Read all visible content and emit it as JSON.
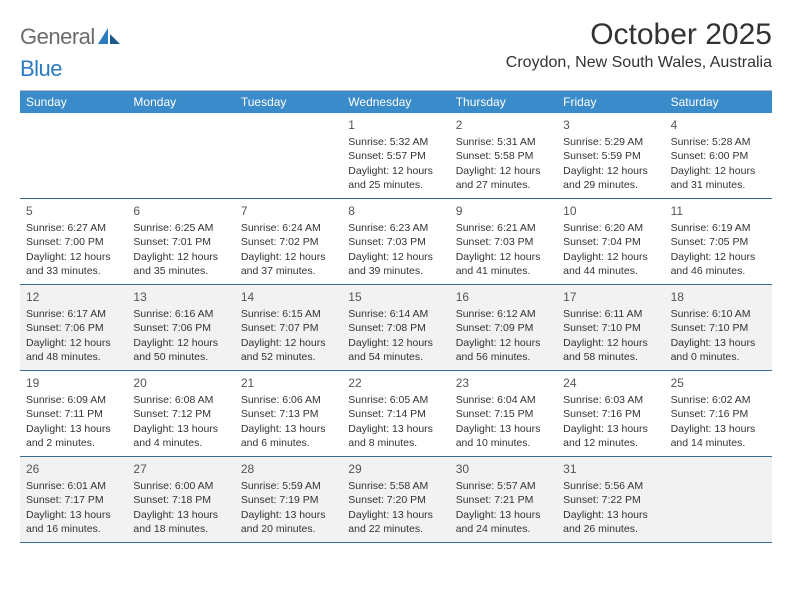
{
  "brand": {
    "left": "General",
    "right": "Blue"
  },
  "title": "October 2025",
  "location": "Croydon, New South Wales, Australia",
  "style": {
    "header_bg": "#3a8bc9",
    "header_fg": "#ffffff",
    "row_divider": "#3a6a8f",
    "alt_row_bg": "#f2f2f2",
    "text_color": "#333333",
    "title_fontsize": 30,
    "location_fontsize": 16,
    "dayhead_fontsize": 12,
    "cell_fontsize": 10.5
  },
  "day_names": [
    "Sunday",
    "Monday",
    "Tuesday",
    "Wednesday",
    "Thursday",
    "Friday",
    "Saturday"
  ],
  "leading_blanks": 3,
  "days": [
    {
      "n": "1",
      "sunrise": "Sunrise: 5:32 AM",
      "sunset": "Sunset: 5:57 PM",
      "day1": "Daylight: 12 hours",
      "day2": "and 25 minutes."
    },
    {
      "n": "2",
      "sunrise": "Sunrise: 5:31 AM",
      "sunset": "Sunset: 5:58 PM",
      "day1": "Daylight: 12 hours",
      "day2": "and 27 minutes."
    },
    {
      "n": "3",
      "sunrise": "Sunrise: 5:29 AM",
      "sunset": "Sunset: 5:59 PM",
      "day1": "Daylight: 12 hours",
      "day2": "and 29 minutes."
    },
    {
      "n": "4",
      "sunrise": "Sunrise: 5:28 AM",
      "sunset": "Sunset: 6:00 PM",
      "day1": "Daylight: 12 hours",
      "day2": "and 31 minutes."
    },
    {
      "n": "5",
      "sunrise": "Sunrise: 6:27 AM",
      "sunset": "Sunset: 7:00 PM",
      "day1": "Daylight: 12 hours",
      "day2": "and 33 minutes."
    },
    {
      "n": "6",
      "sunrise": "Sunrise: 6:25 AM",
      "sunset": "Sunset: 7:01 PM",
      "day1": "Daylight: 12 hours",
      "day2": "and 35 minutes."
    },
    {
      "n": "7",
      "sunrise": "Sunrise: 6:24 AM",
      "sunset": "Sunset: 7:02 PM",
      "day1": "Daylight: 12 hours",
      "day2": "and 37 minutes."
    },
    {
      "n": "8",
      "sunrise": "Sunrise: 6:23 AM",
      "sunset": "Sunset: 7:03 PM",
      "day1": "Daylight: 12 hours",
      "day2": "and 39 minutes."
    },
    {
      "n": "9",
      "sunrise": "Sunrise: 6:21 AM",
      "sunset": "Sunset: 7:03 PM",
      "day1": "Daylight: 12 hours",
      "day2": "and 41 minutes."
    },
    {
      "n": "10",
      "sunrise": "Sunrise: 6:20 AM",
      "sunset": "Sunset: 7:04 PM",
      "day1": "Daylight: 12 hours",
      "day2": "and 44 minutes."
    },
    {
      "n": "11",
      "sunrise": "Sunrise: 6:19 AM",
      "sunset": "Sunset: 7:05 PM",
      "day1": "Daylight: 12 hours",
      "day2": "and 46 minutes."
    },
    {
      "n": "12",
      "sunrise": "Sunrise: 6:17 AM",
      "sunset": "Sunset: 7:06 PM",
      "day1": "Daylight: 12 hours",
      "day2": "and 48 minutes."
    },
    {
      "n": "13",
      "sunrise": "Sunrise: 6:16 AM",
      "sunset": "Sunset: 7:06 PM",
      "day1": "Daylight: 12 hours",
      "day2": "and 50 minutes."
    },
    {
      "n": "14",
      "sunrise": "Sunrise: 6:15 AM",
      "sunset": "Sunset: 7:07 PM",
      "day1": "Daylight: 12 hours",
      "day2": "and 52 minutes."
    },
    {
      "n": "15",
      "sunrise": "Sunrise: 6:14 AM",
      "sunset": "Sunset: 7:08 PM",
      "day1": "Daylight: 12 hours",
      "day2": "and 54 minutes."
    },
    {
      "n": "16",
      "sunrise": "Sunrise: 6:12 AM",
      "sunset": "Sunset: 7:09 PM",
      "day1": "Daylight: 12 hours",
      "day2": "and 56 minutes."
    },
    {
      "n": "17",
      "sunrise": "Sunrise: 6:11 AM",
      "sunset": "Sunset: 7:10 PM",
      "day1": "Daylight: 12 hours",
      "day2": "and 58 minutes."
    },
    {
      "n": "18",
      "sunrise": "Sunrise: 6:10 AM",
      "sunset": "Sunset: 7:10 PM",
      "day1": "Daylight: 13 hours",
      "day2": "and 0 minutes."
    },
    {
      "n": "19",
      "sunrise": "Sunrise: 6:09 AM",
      "sunset": "Sunset: 7:11 PM",
      "day1": "Daylight: 13 hours",
      "day2": "and 2 minutes."
    },
    {
      "n": "20",
      "sunrise": "Sunrise: 6:08 AM",
      "sunset": "Sunset: 7:12 PM",
      "day1": "Daylight: 13 hours",
      "day2": "and 4 minutes."
    },
    {
      "n": "21",
      "sunrise": "Sunrise: 6:06 AM",
      "sunset": "Sunset: 7:13 PM",
      "day1": "Daylight: 13 hours",
      "day2": "and 6 minutes."
    },
    {
      "n": "22",
      "sunrise": "Sunrise: 6:05 AM",
      "sunset": "Sunset: 7:14 PM",
      "day1": "Daylight: 13 hours",
      "day2": "and 8 minutes."
    },
    {
      "n": "23",
      "sunrise": "Sunrise: 6:04 AM",
      "sunset": "Sunset: 7:15 PM",
      "day1": "Daylight: 13 hours",
      "day2": "and 10 minutes."
    },
    {
      "n": "24",
      "sunrise": "Sunrise: 6:03 AM",
      "sunset": "Sunset: 7:16 PM",
      "day1": "Daylight: 13 hours",
      "day2": "and 12 minutes."
    },
    {
      "n": "25",
      "sunrise": "Sunrise: 6:02 AM",
      "sunset": "Sunset: 7:16 PM",
      "day1": "Daylight: 13 hours",
      "day2": "and 14 minutes."
    },
    {
      "n": "26",
      "sunrise": "Sunrise: 6:01 AM",
      "sunset": "Sunset: 7:17 PM",
      "day1": "Daylight: 13 hours",
      "day2": "and 16 minutes."
    },
    {
      "n": "27",
      "sunrise": "Sunrise: 6:00 AM",
      "sunset": "Sunset: 7:18 PM",
      "day1": "Daylight: 13 hours",
      "day2": "and 18 minutes."
    },
    {
      "n": "28",
      "sunrise": "Sunrise: 5:59 AM",
      "sunset": "Sunset: 7:19 PM",
      "day1": "Daylight: 13 hours",
      "day2": "and 20 minutes."
    },
    {
      "n": "29",
      "sunrise": "Sunrise: 5:58 AM",
      "sunset": "Sunset: 7:20 PM",
      "day1": "Daylight: 13 hours",
      "day2": "and 22 minutes."
    },
    {
      "n": "30",
      "sunrise": "Sunrise: 5:57 AM",
      "sunset": "Sunset: 7:21 PM",
      "day1": "Daylight: 13 hours",
      "day2": "and 24 minutes."
    },
    {
      "n": "31",
      "sunrise": "Sunrise: 5:56 AM",
      "sunset": "Sunset: 7:22 PM",
      "day1": "Daylight: 13 hours",
      "day2": "and 26 minutes."
    }
  ]
}
